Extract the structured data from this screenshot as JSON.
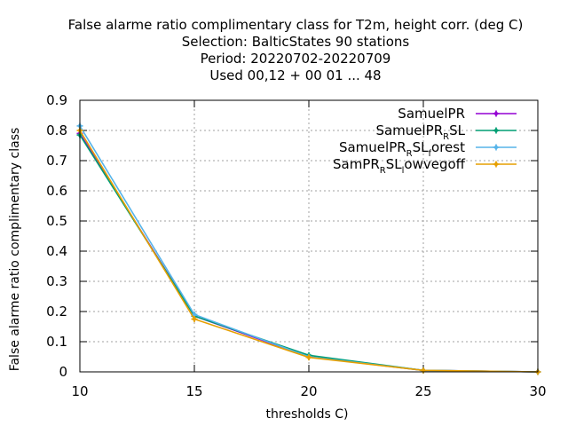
{
  "chart_data": {
    "type": "line",
    "title": [
      "False alarme ratio complimentary class  for T2m, height corr. (deg C)",
      "Selection: BalticStates     90 stations",
      "Period: 20220702-20220709",
      "Used  00,12  + 00 01 ... 48"
    ],
    "xlabel": "thresholds C)",
    "ylabel": "False alarme ratio complimentary class",
    "x": [
      10,
      15,
      20,
      25,
      30
    ],
    "xlim": [
      10,
      30
    ],
    "ylim": [
      0,
      0.9
    ],
    "xticks": [
      "10",
      "15",
      "20",
      "25",
      "30"
    ],
    "yticks": [
      "0",
      "0.1",
      "0.2",
      "0.3",
      "0.4",
      "0.5",
      "0.6",
      "0.7",
      "0.8",
      "0.9"
    ],
    "grid": true,
    "legend_position": "top-right",
    "series": [
      {
        "name": "SamuelPR",
        "legend_parts": [
          [
            "SamuelPR",
            ""
          ]
        ],
        "color": "#9400d3",
        "values": [
          0.79,
          0.185,
          0.05,
          0.005,
          0.0
        ]
      },
      {
        "name": "SamuelPR_RSL",
        "legend_parts": [
          [
            "SamuelPR",
            ""
          ],
          [
            "R",
            "sub"
          ],
          [
            "SL",
            ""
          ]
        ],
        "color": "#009e73",
        "values": [
          0.785,
          0.185,
          0.055,
          0.005,
          0.0
        ]
      },
      {
        "name": "SamuelPR_RSL_forest",
        "legend_parts": [
          [
            "SamuelPR",
            ""
          ],
          [
            "R",
            "sub"
          ],
          [
            "SL",
            ""
          ],
          [
            "f",
            "sub"
          ],
          [
            "orest",
            ""
          ]
        ],
        "color": "#56b4e9",
        "values": [
          0.815,
          0.19,
          0.05,
          0.005,
          0.0
        ]
      },
      {
        "name": "SamPR_RSL_lowvegoff",
        "legend_parts": [
          [
            "SamPR",
            ""
          ],
          [
            "R",
            "sub"
          ],
          [
            "SL",
            ""
          ],
          [
            "l",
            "sub"
          ],
          [
            "owvegoff",
            ""
          ]
        ],
        "color": "#e69f00",
        "values": [
          0.8,
          0.175,
          0.048,
          0.005,
          0.0
        ]
      }
    ]
  }
}
